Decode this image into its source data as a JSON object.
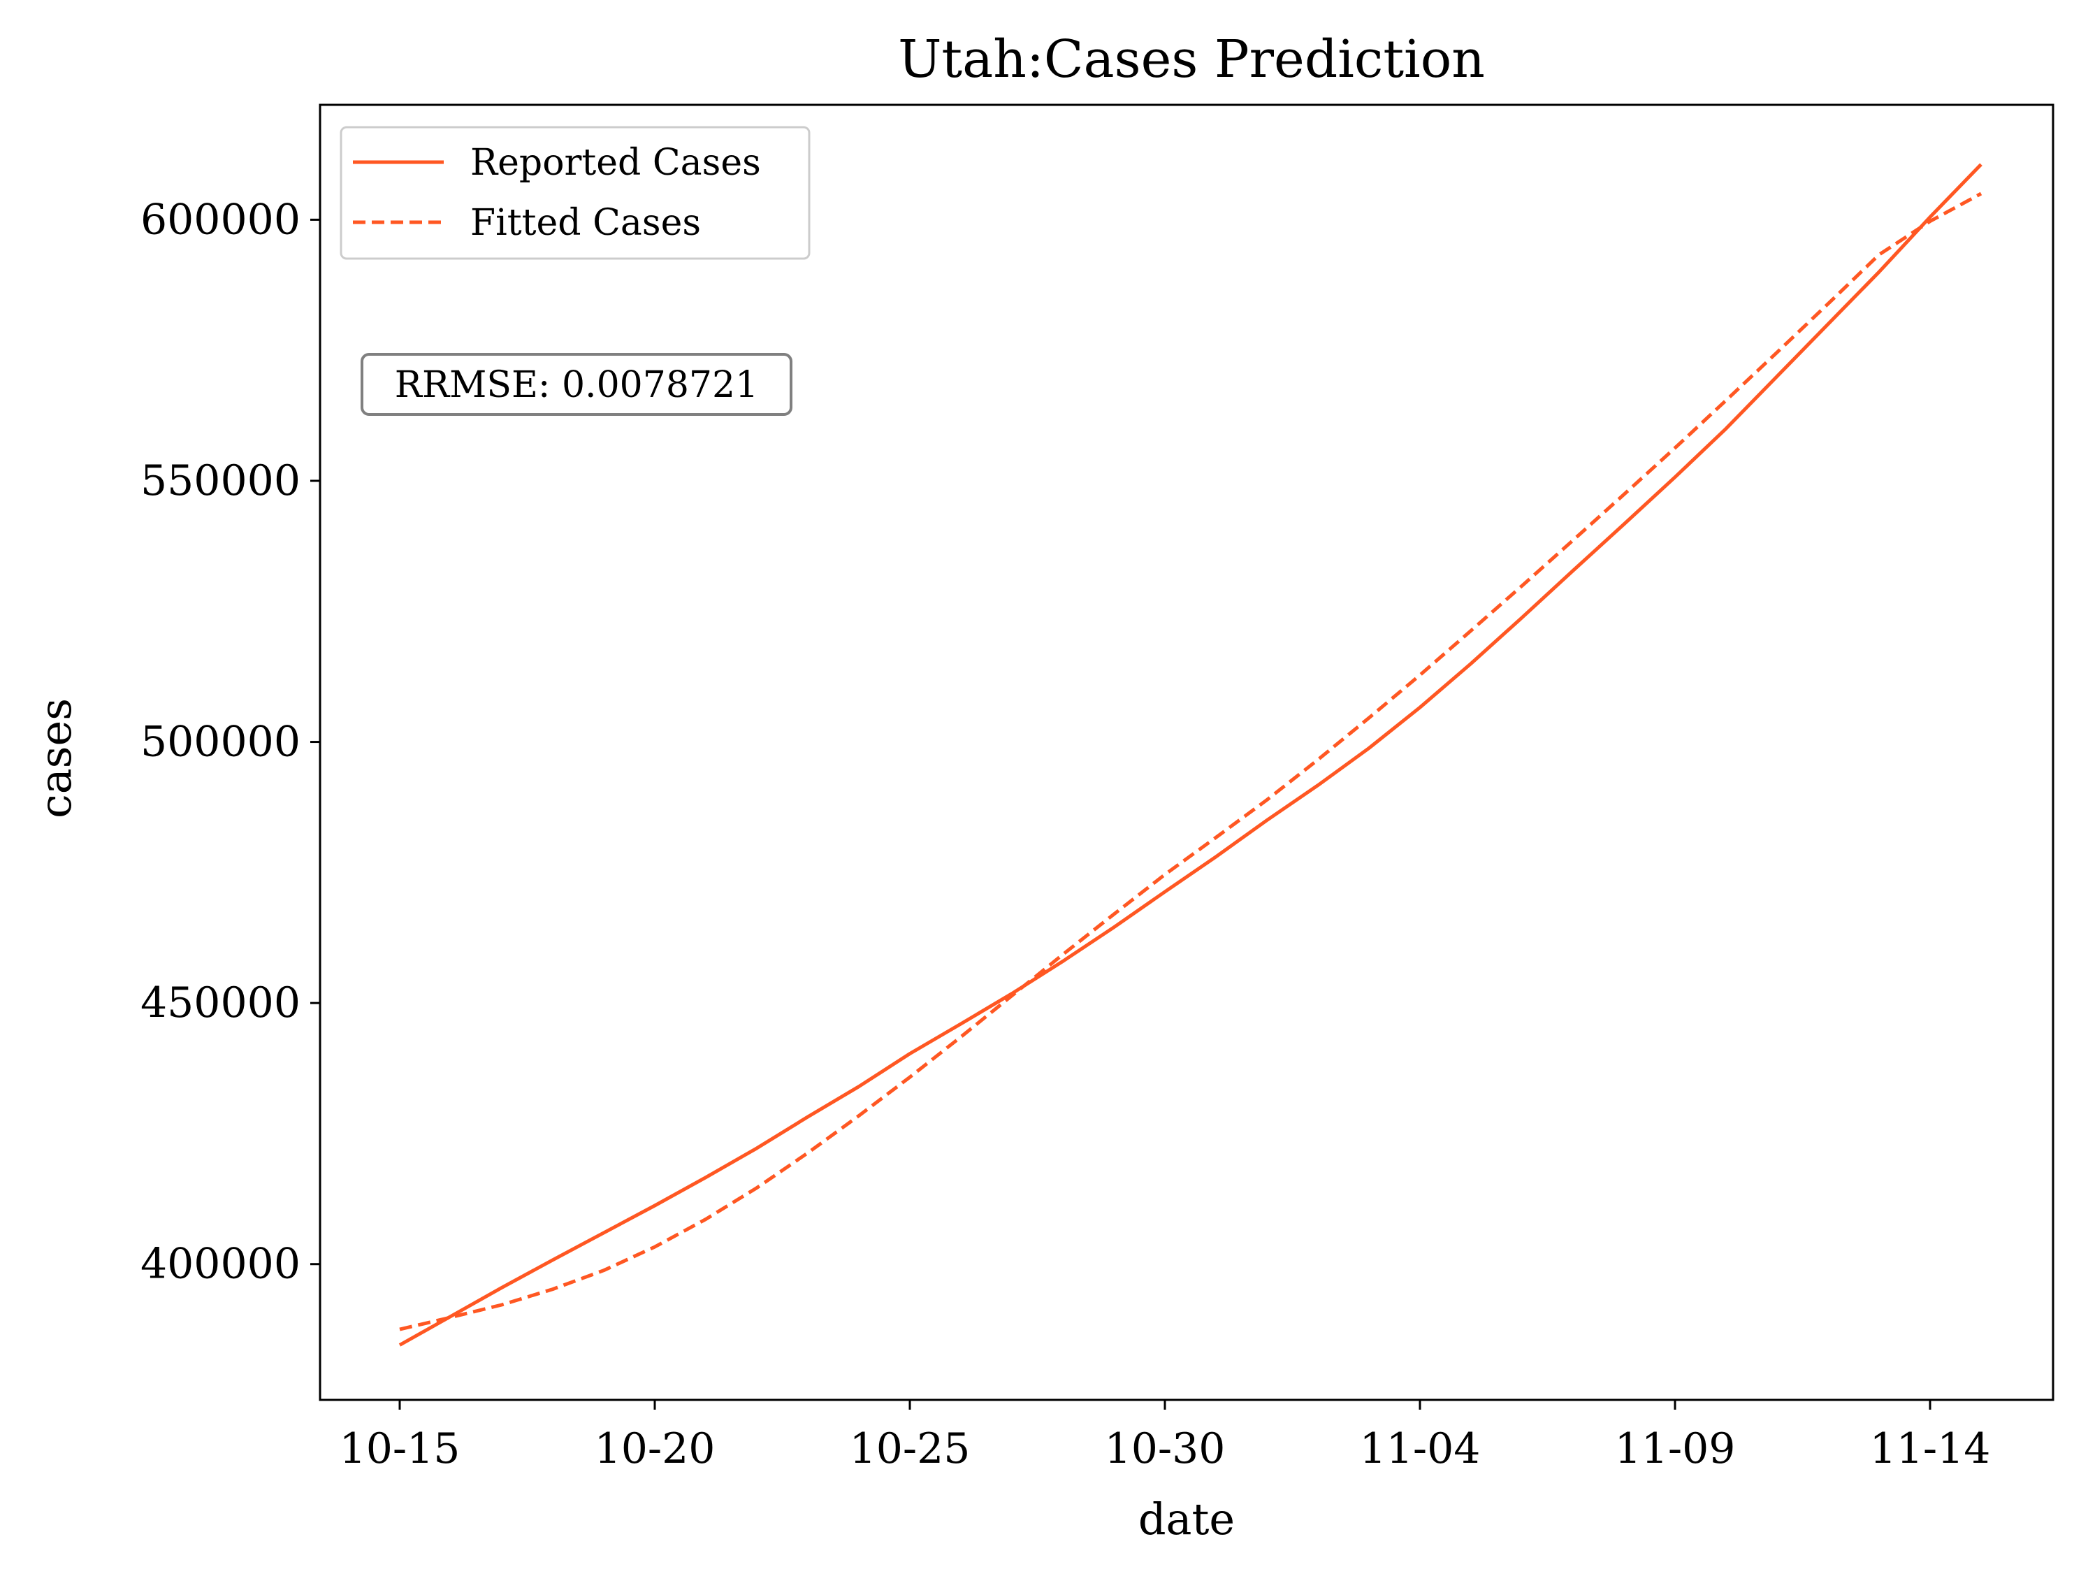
{
  "chart_data": {
    "type": "line",
    "title": "Utah:Cases Prediction",
    "xlabel": "date",
    "ylabel": "cases",
    "x": [
      "10-15",
      "10-16",
      "10-17",
      "10-18",
      "10-19",
      "10-20",
      "10-21",
      "10-22",
      "10-23",
      "10-24",
      "10-25",
      "10-26",
      "10-27",
      "10-28",
      "10-29",
      "10-30",
      "10-31",
      "11-01",
      "11-02",
      "11-03",
      "11-04",
      "11-05",
      "11-06",
      "11-07",
      "11-08",
      "11-09",
      "11-10",
      "11-11",
      "11-12",
      "11-13",
      "11-14",
      "11-15"
    ],
    "x_ticks": [
      "10-15",
      "10-20",
      "10-25",
      "10-30",
      "11-04",
      "11-09",
      "11-14"
    ],
    "y_ticks": [
      400000,
      450000,
      500000,
      550000,
      600000
    ],
    "y_tick_labels": [
      "400000",
      "450000",
      "500000",
      "550000",
      "600000"
    ],
    "ylim": [
      374000,
      622000
    ],
    "series": [
      {
        "name": "Reported Cases",
        "style": "solid",
        "color": "#ff5722",
        "values": [
          384500,
          390000,
          395500,
          400800,
          406000,
          411200,
          416600,
          422200,
          428200,
          434000,
          440300,
          446000,
          451800,
          458000,
          464500,
          471300,
          478000,
          485000,
          491700,
          498800,
          506600,
          515000,
          523800,
          532800,
          541700,
          550700,
          560000,
          570000,
          580000,
          590000,
          600500,
          610600
        ]
      },
      {
        "name": "Fitted Cases",
        "style": "dashed",
        "color": "#ff5722",
        "values": [
          387500,
          389800,
          392200,
          395200,
          398800,
          403300,
          408600,
          414600,
          421300,
          428400,
          435800,
          443500,
          451400,
          459300,
          467000,
          474600,
          481700,
          488900,
          496600,
          504600,
          512800,
          521300,
          529900,
          538600,
          547400,
          556300,
          565400,
          574600,
          583900,
          593300,
          599700,
          605000
        ]
      }
    ],
    "legend": {
      "position": "upper-left",
      "entries": [
        "Reported Cases",
        "Fitted Cases"
      ]
    },
    "annotations": [
      {
        "text": "RRMSE: 0.0078721"
      }
    ],
    "grid": false
  }
}
